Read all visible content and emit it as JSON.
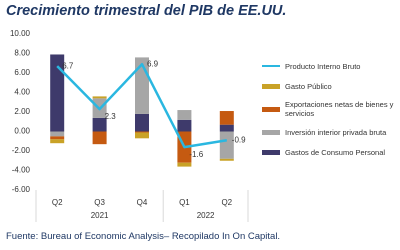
{
  "chart_data": {
    "type": "bar",
    "stacked": true,
    "title": "Crecimiento trimestral del PIB de EE.UU.",
    "source": "Fuente: Bureau of Economic Analysis– Recopilado In On Capital.",
    "categories": [
      "Q2",
      "Q3",
      "Q4",
      "Q1",
      "Q2"
    ],
    "x_groups": [
      "2021",
      "2021",
      "2021",
      "2022",
      "2022"
    ],
    "ylim": [
      -6,
      10
    ],
    "yticks": [
      {
        "value": 10,
        "label": "10.00"
      },
      {
        "value": 8,
        "label": "8.00"
      },
      {
        "value": 6,
        "label": "6.00"
      },
      {
        "value": 4,
        "label": "4.00"
      },
      {
        "value": 2,
        "label": "2.00"
      },
      {
        "value": 0,
        "label": "0.00"
      },
      {
        "value": -2,
        "label": "-2.00"
      },
      {
        "value": -4,
        "label": "-4.00"
      },
      {
        "value": -6,
        "label": "-6.00"
      }
    ],
    "grid": false,
    "legend": "right",
    "series": [
      {
        "name": "Gastos de Consumo Personal",
        "color": "#3e3a6b",
        "values": [
          7.9,
          1.4,
          1.8,
          1.2,
          0.7
        ]
      },
      {
        "name": "Inversión interior privada bruta",
        "color": "#a6a6a6",
        "values": [
          -0.5,
          2.0,
          5.8,
          1.0,
          -2.8
        ]
      },
      {
        "name": "Exportaciones netas de bienes y servicios",
        "color": "#c55a11",
        "values": [
          -0.3,
          -1.3,
          -0.1,
          -3.2,
          1.4
        ]
      },
      {
        "name": "Gasto Público",
        "color": "#c9a227",
        "values": [
          -0.4,
          0.2,
          -0.6,
          -0.4,
          -0.2
        ]
      },
      {
        "name": "Producto Interno Bruto",
        "color": "#2ab7e0",
        "type": "line",
        "values": [
          6.7,
          2.3,
          6.9,
          -1.6,
          -0.9
        ]
      }
    ]
  }
}
